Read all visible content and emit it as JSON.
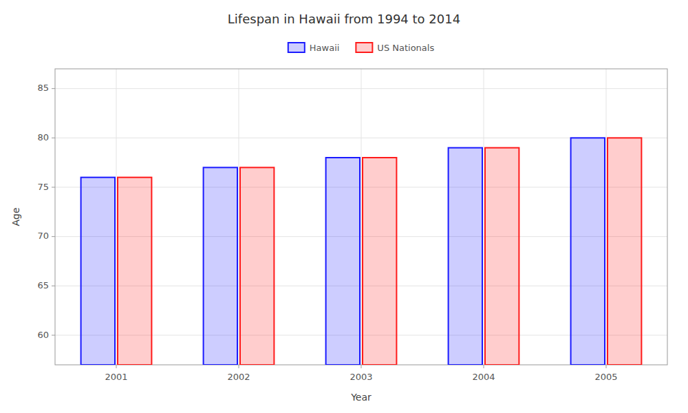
{
  "chart_data": {
    "type": "bar",
    "title": "Lifespan in Hawaii from 1994 to 2014",
    "x_label": "Year",
    "y_label": "Age",
    "categories": [
      "2001",
      "2002",
      "2003",
      "2004",
      "2005"
    ],
    "series": [
      {
        "name": "Hawaii",
        "color": "#1a1aff",
        "values": [
          76,
          77,
          78,
          79,
          80
        ]
      },
      {
        "name": "US Nationals",
        "color": "#ff1a1a",
        "values": [
          76,
          77,
          78,
          79,
          80
        ]
      }
    ],
    "ylim": [
      57,
      87
    ],
    "yticks": [
      60,
      65,
      70,
      75,
      80,
      85
    ],
    "grid": true,
    "legend": "top"
  }
}
